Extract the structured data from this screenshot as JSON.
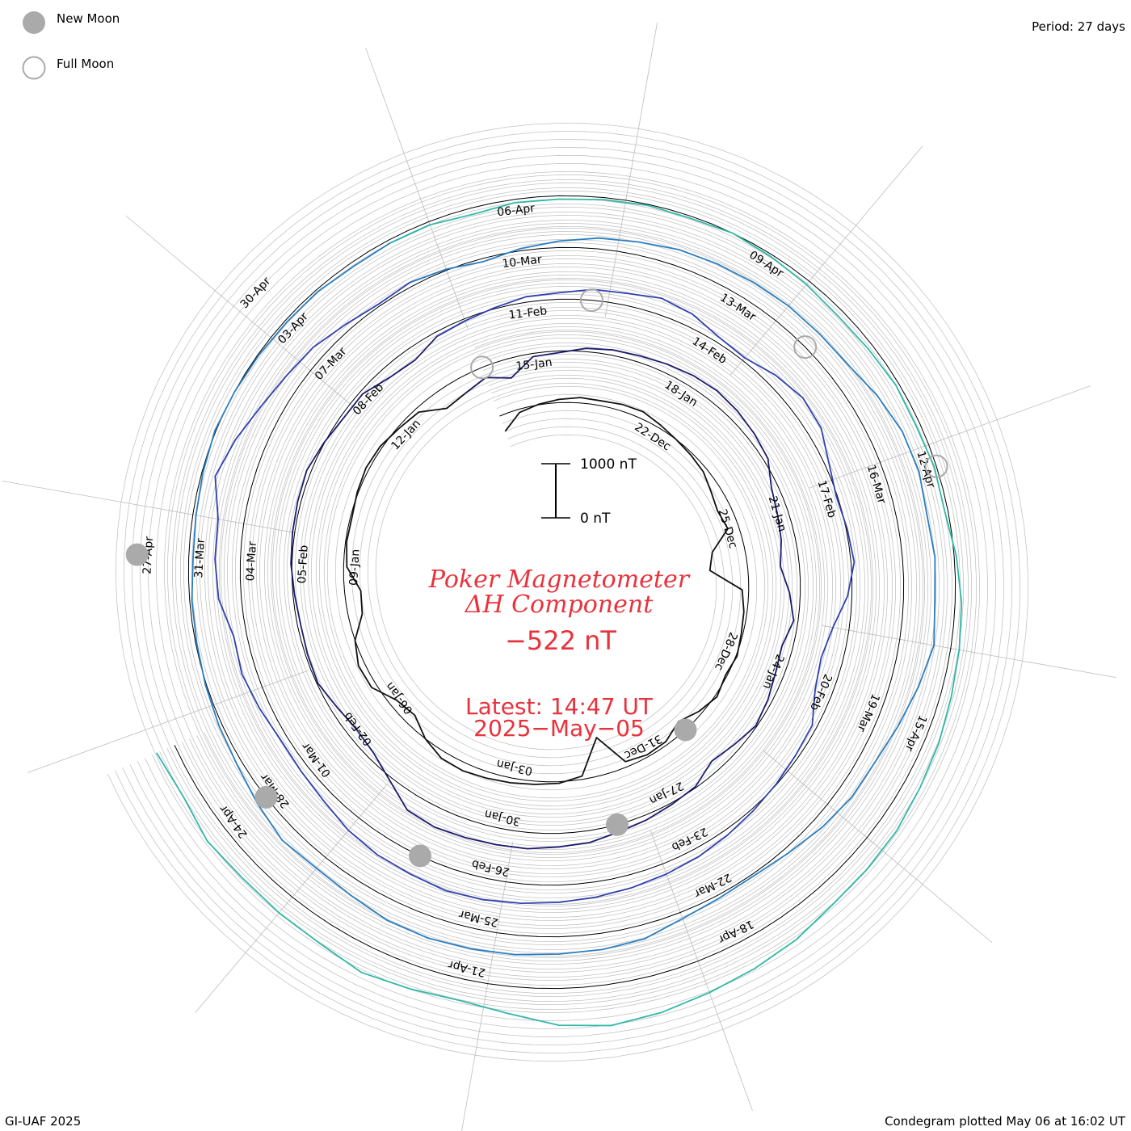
{
  "legend": {
    "new_moon_label": "New Moon",
    "full_moon_label": "Full Moon",
    "new_moon_color": "#aaaaaa",
    "full_moon_color": "#aaaaaa"
  },
  "period_label": "Period: 27 days",
  "footer": {
    "left": "GI-UAF 2025",
    "right": "Condegram plotted May 06 at 16:02 UT"
  },
  "title": {
    "line1": "Poker Magnetometer",
    "line2": "ΔH Component"
  },
  "latest_value": "−522 nT",
  "latest_time": "Latest:  14:47 UT",
  "latest_date": "2025−May−05",
  "scale": {
    "top_label": "1000 nT",
    "bottom_label": "0 nT"
  },
  "chart_data": {
    "type": "line",
    "subtype": "spiral condegram",
    "period_days": 27,
    "start_date": "2024-12-18",
    "end_date": "2025-05-05",
    "value_range_nT": [
      -522,
      1000
    ],
    "series_colors": [
      "#111111",
      "#1b1b6e",
      "#3040b0",
      "#2a7ec0",
      "#30b8a8",
      "#3cb848",
      "#7cc030",
      "#c0b020",
      "#c87a10",
      "#c83010"
    ],
    "tick_labels": [
      "22-Dec",
      "25-Dec",
      "28-Dec",
      "31-Dec",
      "03-Jan",
      "06-Jan",
      "09-Jan",
      "12-Jan",
      "15-Jan",
      "18-Jan",
      "21-Jan",
      "24-Jan",
      "27-Jan",
      "30-Jan",
      "02-Feb",
      "05-Feb",
      "08-Feb",
      "11-Feb",
      "14-Feb",
      "17-Feb",
      "20-Feb",
      "23-Feb",
      "26-Feb",
      "01-Mar",
      "04-Mar",
      "07-Mar",
      "10-Mar",
      "13-Mar",
      "16-Mar",
      "19-Mar",
      "22-Mar",
      "25-Mar",
      "28-Mar",
      "31-Mar",
      "03-Apr",
      "06-Apr",
      "09-Apr",
      "12-Apr",
      "15-Apr",
      "18-Apr",
      "21-Apr",
      "24-Apr",
      "27-Apr",
      "30-Apr"
    ],
    "tick_days": [
      4,
      7,
      10,
      13,
      16,
      19,
      22,
      25,
      28,
      31,
      34,
      37,
      40,
      43,
      46,
      49,
      52,
      55,
      58,
      61,
      64,
      67,
      70,
      73,
      76,
      79,
      82,
      85,
      88,
      91,
      94,
      97,
      100,
      103,
      106,
      109,
      112,
      115,
      118,
      121,
      124,
      127,
      130,
      133
    ],
    "new_moon_days": [
      12,
      41,
      71,
      100,
      130
    ],
    "full_moon_days": [
      27,
      56,
      86,
      115
    ],
    "data_step_days": 0.5,
    "values_nT": [
      -300,
      -60,
      10,
      60,
      100,
      90,
      120,
      130,
      60,
      0,
      -40,
      -80,
      -180,
      -250,
      -200,
      -600,
      -700,
      -120,
      -60,
      -30,
      20,
      -30,
      40,
      -60,
      -200,
      -60,
      -40,
      -100,
      -700,
      -60,
      30,
      60,
      90,
      120,
      150,
      130,
      0,
      -200,
      -140,
      100,
      120,
      0,
      -260,
      -300,
      -60,
      -20,
      -30,
      20,
      60,
      40,
      -30,
      -80,
      -350,
      -300,
      -200,
      -360,
      -60,
      -30,
      60,
      100,
      120,
      160,
      200,
      220,
      190,
      140,
      80,
      -120,
      -200,
      -260,
      -350,
      -200,
      -80,
      -200,
      -160,
      -80,
      -20,
      -120,
      -200,
      -20,
      30,
      90,
      140,
      220,
      250,
      300,
      310,
      330,
      360,
      320,
      60,
      -120,
      -180,
      -120,
      -20,
      -40,
      -60,
      -30,
      20,
      40,
      60,
      80,
      10,
      -60,
      -60,
      -200,
      -240,
      -80,
      -40,
      20,
      100,
      120,
      200,
      220,
      300,
      240,
      100,
      60,
      200,
      300,
      260,
      80,
      -20,
      20,
      60,
      -80,
      -300,
      -400,
      -320,
      -90,
      -60,
      -10,
      40,
      100,
      160,
      200,
      240,
      280,
      320,
      360,
      400,
      420,
      380,
      360,
      300,
      200,
      150,
      130,
      200,
      270,
      240,
      420,
      470,
      480,
      700,
      560,
      400,
      300,
      240,
      120,
      40,
      80,
      20,
      -60,
      40,
      120,
      200,
      240,
      300,
      320,
      340,
      360,
      360,
      380,
      500,
      600,
      620,
      560,
      600,
      580,
      640,
      520,
      400,
      300,
      280,
      200,
      100,
      40,
      60,
      120,
      260,
      300,
      320,
      360,
      380,
      400,
      380,
      300,
      260,
      300,
      200,
      100,
      60,
      20,
      -20,
      -40,
      -80,
      -60,
      -20,
      20,
      0,
      -20,
      -40,
      -40,
      -80,
      -60,
      -60,
      -120,
      -60,
      -60,
      -40,
      -20,
      -40,
      0,
      -40,
      -80,
      -120,
      -100,
      -60,
      -80,
      -40,
      -60,
      40,
      120,
      160,
      200,
      260,
      300,
      360,
      380,
      400,
      500,
      560,
      620,
      700,
      760,
      680,
      500,
      400,
      440,
      500,
      400,
      380,
      360,
      400,
      300,
      360
    ]
  }
}
